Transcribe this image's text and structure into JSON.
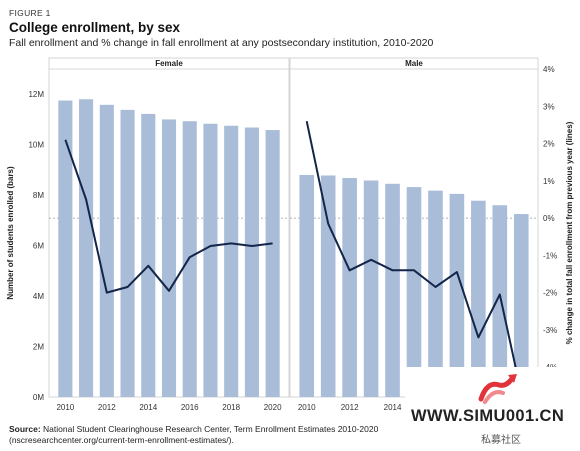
{
  "figure_label": "FIGURE 1",
  "title": "College enrollment, by sex",
  "subtitle": "Fall enrollment and % change in fall enrollment at any postsecondary institution, 2010-2020",
  "source_label": "Source:",
  "source_text": "National Student Clearinghouse Research Center, Term Enrollment Estimates 2010-2020",
  "source_url": "(nscresearchcenter.org/current-term-enrollment-estimates/).",
  "watermark": {
    "url": "WWW.SIMU001.CN",
    "cn": "私募社区"
  },
  "colors": {
    "bars": "#a9bcd8",
    "line": "#13264a",
    "zero_line": "#999999",
    "panel_border": "#cccccc"
  },
  "chart_data": {
    "type": "bar+line",
    "y_left": {
      "label": "Number of students enrolled (bars)",
      "ticks": [
        "0M",
        "2M",
        "4M",
        "6M",
        "8M",
        "10M",
        "12M"
      ],
      "range": [
        0,
        13
      ]
    },
    "y_right": {
      "label": "% change in total fall enrollment from previous year (lines)",
      "ticks": [
        "-4%",
        "-3%",
        "-2%",
        "-1%",
        "0%",
        "1%",
        "2%",
        "3%",
        "4%"
      ],
      "range": [
        -4.8,
        4
      ]
    },
    "x_ticks": [
      "2010",
      "2012",
      "2014",
      "2016",
      "2018",
      "2020"
    ],
    "panels": [
      {
        "name": "Female",
        "years": [
          2010,
          2011,
          2012,
          2013,
          2014,
          2015,
          2016,
          2017,
          2018,
          2019,
          2020
        ],
        "enrollment_millions": [
          11.75,
          11.8,
          11.58,
          11.38,
          11.22,
          11.0,
          10.93,
          10.83,
          10.75,
          10.68,
          10.58
        ],
        "pct_change": [
          2.1,
          0.5,
          -2.0,
          -1.85,
          -1.28,
          -1.95,
          -1.05,
          -0.75,
          -0.68,
          -0.75,
          -0.68
        ]
      },
      {
        "name": "Male",
        "years": [
          2010,
          2011,
          2012,
          2013,
          2014,
          2015,
          2016,
          2017,
          2018,
          2019,
          2020
        ],
        "enrollment_millions": [
          8.8,
          8.78,
          8.68,
          8.58,
          8.45,
          8.32,
          8.18,
          8.05,
          7.78,
          7.6,
          7.25
        ],
        "pct_change": [
          2.6,
          -0.15,
          -1.4,
          -1.12,
          -1.4,
          -1.4,
          -1.85,
          -1.45,
          -3.2,
          -2.05,
          -4.7
        ]
      }
    ]
  }
}
